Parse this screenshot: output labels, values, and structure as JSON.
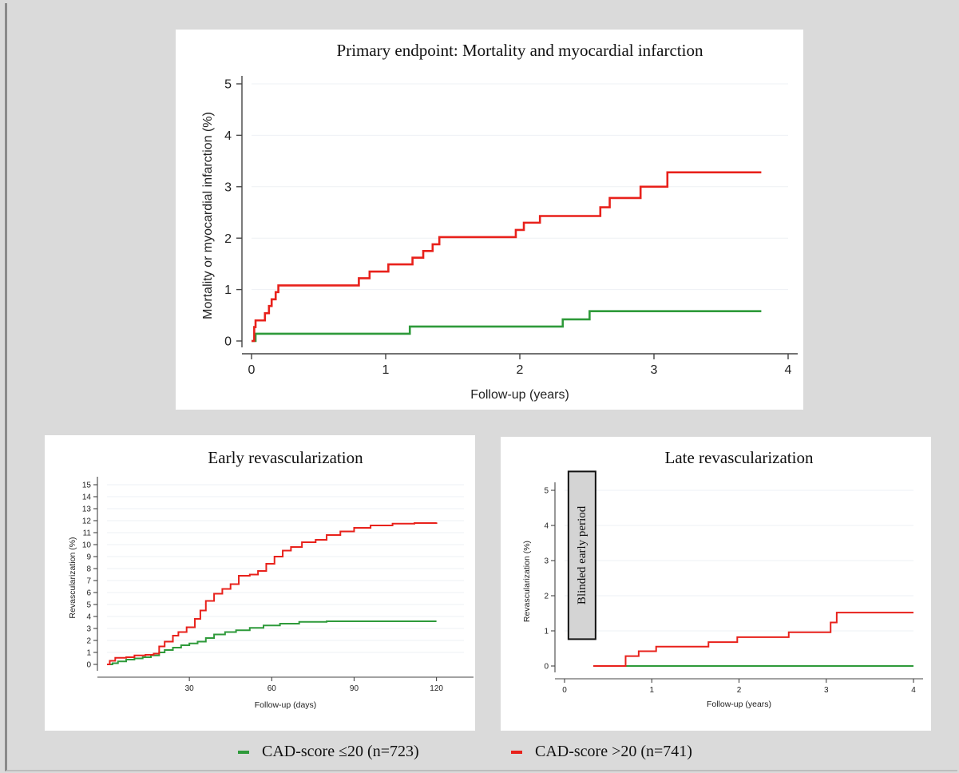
{
  "chart_data": [
    {
      "type": "line",
      "step": true,
      "title": "Primary endpoint: Mortality and myocardial infarction",
      "xlabel": "Follow-up (years)",
      "ylabel": "Mortality or myocardial infarction (%)",
      "xlim": [
        0,
        4
      ],
      "ylim": [
        0,
        5
      ],
      "xticks": [
        0,
        1,
        2,
        3,
        4
      ],
      "yticks": [
        0,
        1,
        2,
        3,
        4,
        5
      ],
      "grid": true,
      "series": [
        {
          "name": "CAD-score ≤20 (n=723)",
          "color": "#2e9a3a",
          "points": [
            [
              0,
              0
            ],
            [
              0.03,
              0.14
            ],
            [
              1.18,
              0.14
            ],
            [
              1.18,
              0.28
            ],
            [
              2.32,
              0.28
            ],
            [
              2.32,
              0.42
            ],
            [
              2.52,
              0.42
            ],
            [
              2.52,
              0.58
            ],
            [
              3.8,
              0.58
            ]
          ]
        },
        {
          "name": "CAD-score >20 (n=741)",
          "color": "#e8211b",
          "points": [
            [
              0,
              0
            ],
            [
              0.02,
              0.27
            ],
            [
              0.03,
              0.4
            ],
            [
              0.08,
              0.4
            ],
            [
              0.1,
              0.54
            ],
            [
              0.13,
              0.68
            ],
            [
              0.15,
              0.81
            ],
            [
              0.18,
              0.95
            ],
            [
              0.2,
              1.08
            ],
            [
              0.8,
              1.08
            ],
            [
              0.8,
              1.22
            ],
            [
              0.88,
              1.22
            ],
            [
              0.88,
              1.35
            ],
            [
              1.02,
              1.35
            ],
            [
              1.02,
              1.49
            ],
            [
              1.2,
              1.49
            ],
            [
              1.2,
              1.62
            ],
            [
              1.28,
              1.62
            ],
            [
              1.28,
              1.75
            ],
            [
              1.35,
              1.75
            ],
            [
              1.35,
              1.88
            ],
            [
              1.4,
              1.88
            ],
            [
              1.4,
              2.02
            ],
            [
              1.97,
              2.02
            ],
            [
              1.97,
              2.16
            ],
            [
              2.03,
              2.16
            ],
            [
              2.03,
              2.3
            ],
            [
              2.15,
              2.3
            ],
            [
              2.15,
              2.43
            ],
            [
              2.6,
              2.43
            ],
            [
              2.6,
              2.6
            ],
            [
              2.67,
              2.6
            ],
            [
              2.67,
              2.78
            ],
            [
              2.9,
              2.78
            ],
            [
              2.9,
              3.0
            ],
            [
              3.1,
              3.0
            ],
            [
              3.1,
              3.28
            ],
            [
              3.8,
              3.28
            ]
          ]
        }
      ]
    },
    {
      "type": "line",
      "step": true,
      "title": "Early revascularization",
      "xlabel": "Follow-up (days)",
      "ylabel": "Revascularization (%)",
      "xlim": [
        0,
        130
      ],
      "ylim": [
        0,
        15
      ],
      "xticks": [
        30,
        60,
        90,
        120
      ],
      "yticks": [
        0,
        1,
        2,
        3,
        4,
        5,
        6,
        7,
        8,
        9,
        10,
        11,
        12,
        13,
        14,
        15
      ],
      "grid": true,
      "series": [
        {
          "name": "CAD-score ≤20 (n=723)",
          "color": "#2e9a3a",
          "points": [
            [
              0,
              0
            ],
            [
              2,
              0.1
            ],
            [
              4,
              0.25
            ],
            [
              7,
              0.4
            ],
            [
              10,
              0.5
            ],
            [
              13,
              0.6
            ],
            [
              16,
              0.75
            ],
            [
              19,
              1.0
            ],
            [
              21,
              1.2
            ],
            [
              24,
              1.4
            ],
            [
              27,
              1.6
            ],
            [
              30,
              1.75
            ],
            [
              33,
              1.9
            ],
            [
              36,
              2.2
            ],
            [
              39,
              2.5
            ],
            [
              43,
              2.7
            ],
            [
              47,
              2.85
            ],
            [
              52,
              3.05
            ],
            [
              57,
              3.25
            ],
            [
              63,
              3.4
            ],
            [
              70,
              3.55
            ],
            [
              80,
              3.6
            ],
            [
              120,
              3.6
            ]
          ]
        },
        {
          "name": "CAD-score >20 (n=741)",
          "color": "#e8211b",
          "points": [
            [
              0,
              0
            ],
            [
              1,
              0.3
            ],
            [
              3,
              0.55
            ],
            [
              7,
              0.6
            ],
            [
              10,
              0.75
            ],
            [
              14,
              0.8
            ],
            [
              17,
              0.9
            ],
            [
              19,
              1.5
            ],
            [
              21,
              1.9
            ],
            [
              24,
              2.4
            ],
            [
              26,
              2.7
            ],
            [
              29,
              3.1
            ],
            [
              32,
              3.8
            ],
            [
              34,
              4.5
            ],
            [
              36,
              5.3
            ],
            [
              39,
              5.9
            ],
            [
              42,
              6.3
            ],
            [
              45,
              6.7
            ],
            [
              48,
              7.4
            ],
            [
              52,
              7.5
            ],
            [
              55,
              7.8
            ],
            [
              58,
              8.4
            ],
            [
              61,
              9.0
            ],
            [
              64,
              9.5
            ],
            [
              67,
              9.8
            ],
            [
              71,
              10.2
            ],
            [
              76,
              10.4
            ],
            [
              80,
              10.8
            ],
            [
              85,
              11.1
            ],
            [
              90,
              11.4
            ],
            [
              96,
              11.6
            ],
            [
              104,
              11.75
            ],
            [
              112,
              11.8
            ],
            [
              120,
              11.85
            ]
          ]
        }
      ]
    },
    {
      "type": "line",
      "step": true,
      "title": "Late revascularization",
      "xlabel": "Follow-up (years)",
      "ylabel": "Revascularization (%)",
      "xlim": [
        0,
        4
      ],
      "ylim": [
        0,
        5
      ],
      "xticks": [
        0,
        1,
        2,
        3,
        4
      ],
      "yticks": [
        0,
        1,
        2,
        3,
        4,
        5
      ],
      "grid": true,
      "annotation": "Blinded early period",
      "series": [
        {
          "name": "CAD-score ≤20 (n=723)",
          "color": "#2e9a3a",
          "points": [
            [
              0.33,
              0
            ],
            [
              4.0,
              0
            ]
          ]
        },
        {
          "name": "CAD-score >20 (n=741)",
          "color": "#e8211b",
          "points": [
            [
              0.33,
              0
            ],
            [
              0.7,
              0
            ],
            [
              0.7,
              0.28
            ],
            [
              0.85,
              0.28
            ],
            [
              0.85,
              0.42
            ],
            [
              1.05,
              0.42
            ],
            [
              1.05,
              0.55
            ],
            [
              1.65,
              0.55
            ],
            [
              1.65,
              0.68
            ],
            [
              1.98,
              0.68
            ],
            [
              1.98,
              0.82
            ],
            [
              2.57,
              0.82
            ],
            [
              2.57,
              0.96
            ],
            [
              3.05,
              0.96
            ],
            [
              3.05,
              1.24
            ],
            [
              3.12,
              1.24
            ],
            [
              3.12,
              1.52
            ],
            [
              4.0,
              1.52
            ]
          ]
        }
      ]
    }
  ],
  "legend": [
    {
      "label": "CAD-score ≤20 (n=723)",
      "color": "#2e9a3a"
    },
    {
      "label": "CAD-score >20 (n=741)",
      "color": "#e8211b"
    }
  ]
}
